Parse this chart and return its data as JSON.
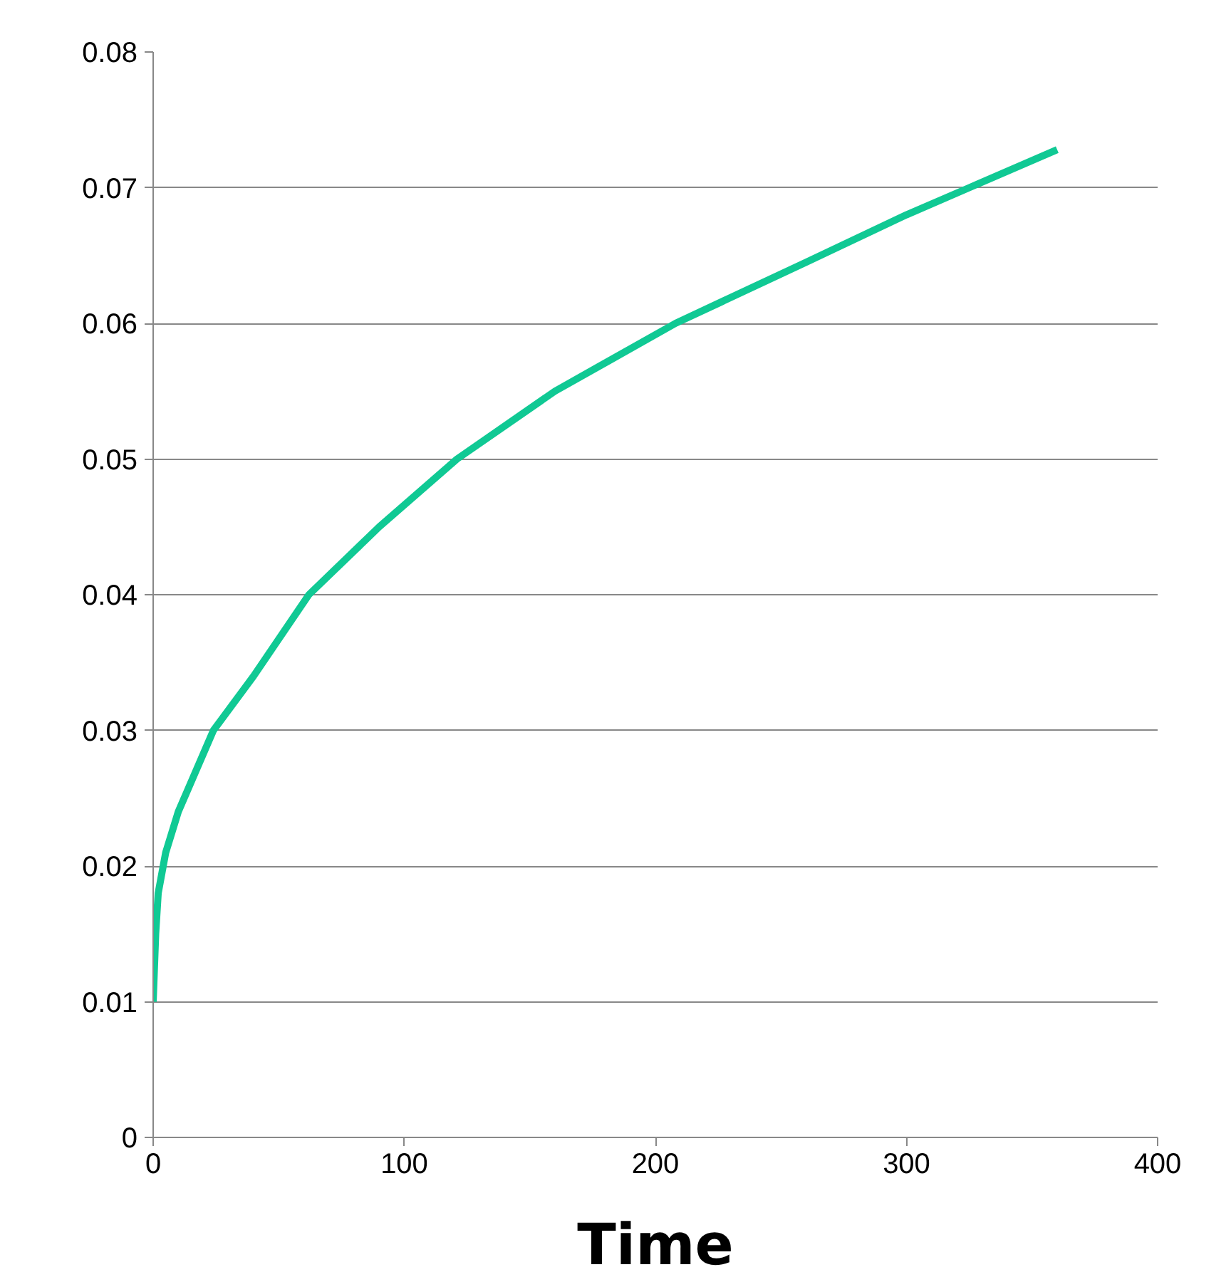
{
  "chart_data": {
    "type": "line",
    "xlabel": "Time",
    "x": [
      0,
      1,
      2,
      5,
      10,
      24,
      40,
      62,
      90,
      121,
      160,
      208,
      260,
      300,
      325,
      360
    ],
    "series": [
      {
        "color": "#10c994",
        "values": [
          0.01,
          0.015,
          0.018,
          0.021,
          0.024,
          0.03,
          0.034,
          0.04,
          0.045,
          0.05,
          0.055,
          0.06,
          0.0645,
          0.068,
          0.07,
          0.0728
        ]
      }
    ],
    "xlim": [
      0,
      400
    ],
    "xticks": [
      0,
      100,
      200,
      300,
      400
    ],
    "ylim": [
      0,
      0.08
    ],
    "yticks": [
      {
        "value": 0,
        "label": "0"
      },
      {
        "value": 0.01,
        "label": "0.01"
      },
      {
        "value": 0.02,
        "label": "0.02"
      },
      {
        "value": 0.03,
        "label": "0.03"
      },
      {
        "value": 0.04,
        "label": "0.04"
      },
      {
        "value": 0.05,
        "label": "0.05"
      },
      {
        "value": 0.06,
        "label": "0.06"
      },
      {
        "value": 0.07,
        "label": "0.07"
      },
      {
        "value": 0.08,
        "label": "0.08"
      }
    ],
    "grid": "y",
    "marker": "none",
    "line_style": "solid"
  }
}
